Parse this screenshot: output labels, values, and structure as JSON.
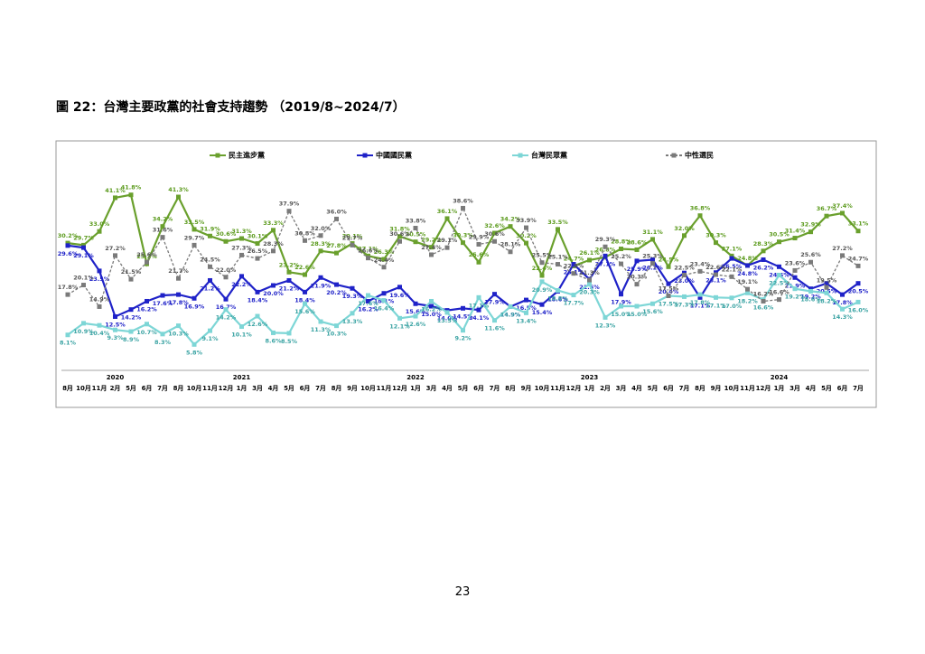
{
  "page_number": "23",
  "chart_data": {
    "type": "line",
    "title": "圖 22：台灣主要政黨的社會支持趨勢 （2019/8~2024/7）",
    "categories": [
      "8月",
      "10月",
      "11月",
      "2月",
      "5月",
      "6月",
      "7月",
      "8月",
      "10月",
      "11月",
      "12月",
      "1月",
      "3月",
      "4月",
      "5月",
      "6月",
      "7月",
      "8月",
      "9月",
      "10月",
      "11月",
      "12月",
      "1月",
      "3月",
      "4月",
      "5月",
      "6月",
      "7月",
      "8月",
      "9月",
      "10月",
      "11月",
      "12月",
      "1月",
      "2月",
      "3月",
      "4月",
      "5月",
      "6月",
      "7月",
      "8月",
      "9月",
      "10月",
      "11月",
      "12月",
      "1月",
      "3月",
      "4月",
      "5月",
      "6月",
      "7月"
    ],
    "year_row": [
      null,
      null,
      null,
      "2020",
      null,
      null,
      null,
      null,
      null,
      null,
      null,
      "2021",
      null,
      null,
      null,
      null,
      null,
      null,
      null,
      null,
      null,
      null,
      "2022",
      null,
      null,
      null,
      null,
      null,
      null,
      null,
      null,
      null,
      null,
      "2023",
      null,
      null,
      null,
      null,
      null,
      null,
      null,
      null,
      null,
      null,
      null,
      "2024",
      null,
      null,
      null,
      null,
      null
    ],
    "ylim": [
      0,
      45
    ],
    "series": [
      {
        "name": "民主進步黨",
        "color": "#6aa02d",
        "label_color": "#5b9a1c",
        "dash": false,
        "values": [
          30.2,
          29.7,
          33.0,
          41.1,
          41.8,
          25.2,
          34.2,
          41.3,
          33.5,
          31.9,
          30.6,
          31.3,
          30.1,
          33.3,
          23.2,
          22.6,
          28.3,
          27.8,
          30.1,
          27.1,
          26.3,
          31.8,
          30.5,
          29.2,
          36.1,
          30.3,
          25.6,
          32.6,
          34.2,
          30.2,
          22.4,
          33.5,
          24.7,
          26.1,
          26.8,
          28.8,
          28.6,
          31.1,
          24.5,
          32.0,
          36.8,
          30.3,
          27.1,
          24.8,
          28.3,
          30.5,
          31.4,
          32.9,
          36.7,
          37.4,
          33.1
        ],
        "value_labels": [
          "30.2%",
          "29.7%",
          "33.0%",
          "41.1%",
          "41.8%",
          "25.2%",
          "34.2%",
          "41.3%",
          "33.5%",
          "31.9%",
          "30.6%",
          "31.3%",
          "30.1%",
          "33.3%",
          "23.2%",
          "22.6%",
          "28.3%",
          "27.8%",
          "30.1%",
          "27.1%",
          "26.3%",
          "31.8%",
          "30.5%",
          "29.2%",
          "36.1%",
          "30.3%",
          "25.6%",
          "32.6%",
          "34.2%",
          "30.2%",
          "22.4%",
          "33.5%",
          "24.7%",
          "26.1%",
          "26.8%",
          "28.8%",
          "28.6%",
          "31.1%",
          "24.5%",
          "32.0%",
          "36.8%",
          "30.3%",
          "27.1%",
          "24.8%",
          "28.3%",
          "30.5%",
          "31.4%",
          "32.9%",
          "36.7%",
          "37.4%",
          "33.1%"
        ]
      },
      {
        "name": "中國國民黨",
        "color": "#1f22c8",
        "label_color": "#1f22c8",
        "dash": false,
        "values": [
          29.6,
          29.1,
          23.5,
          12.5,
          14.2,
          16.2,
          17.6,
          17.8,
          16.9,
          21.2,
          16.7,
          22.2,
          18.4,
          20.0,
          21.2,
          18.4,
          21.9,
          20.2,
          19.3,
          16.2,
          18.1,
          19.6,
          15.6,
          15.0,
          14.0,
          14.5,
          14.1,
          17.9,
          14.9,
          16.5,
          15.4,
          18.6,
          25.1,
          21.5,
          27.1,
          17.9,
          25.9,
          26.2,
          20.4,
          23.0,
          17.1,
          23.1,
          26.5,
          24.8,
          26.2,
          24.5,
          21.9,
          19.2,
          20.5,
          17.8,
          20.5
        ],
        "value_labels": [
          "29.6%",
          "29.1%",
          "23.5%",
          "12.5%",
          "14.2%",
          "16.2%",
          "17.6%",
          "17.8%",
          "16.9%",
          "21.2%",
          "16.7%",
          "22.2%",
          "18.4%",
          "20.0%",
          "21.2%",
          "18.4%",
          "21.9%",
          "20.2%",
          "19.3%",
          "16.2%",
          "18.1%",
          "19.6%",
          "15.6%",
          "15.0%",
          "14.0%",
          "14.5%",
          "14.1%",
          "17.9%",
          "14.9%",
          "16.5%",
          "15.4%",
          "18.6%",
          "25.1%",
          "21.5%",
          "27.1%",
          "17.9%",
          "25.9%",
          "26.2%",
          "20.4%",
          "23.0%",
          "17.1%",
          "23.1%",
          "26.5%",
          "24.8%",
          "26.2%",
          "24.5%",
          "21.9%",
          "19.2%",
          "20.5%",
          "17.8%",
          "20.5%"
        ]
      },
      {
        "name": "台灣民眾黨",
        "color": "#7dd6d6",
        "label_color": "#3aa3a3",
        "dash": false,
        "values": [
          8.1,
          10.9,
          10.4,
          9.3,
          8.9,
          10.7,
          8.3,
          10.3,
          5.8,
          9.1,
          14.2,
          10.1,
          12.6,
          8.6,
          8.5,
          15.6,
          11.3,
          10.3,
          13.3,
          17.6,
          16.4,
          12.1,
          12.6,
          16.2,
          13.5,
          9.2,
          17.1,
          11.6,
          14.9,
          13.4,
          20.9,
          18.8,
          17.7,
          20.3,
          12.3,
          15.0,
          15.0,
          15.6,
          17.5,
          17.3,
          17.8,
          17.1,
          17.0,
          18.2,
          16.6,
          22.5,
          19.2,
          18.6,
          18.2,
          14.3,
          16.0
        ],
        "value_labels": [
          "8.1%",
          "10.9%",
          "10.4%",
          "9.3%",
          "8.9%",
          "10.7%",
          "8.3%",
          "10.3%",
          "5.8%",
          "9.1%",
          "14.2%",
          "10.1%",
          "12.6%",
          "8.6%",
          "8.5%",
          "15.6%",
          "11.3%",
          "10.3%",
          "13.3%",
          "17.6%",
          "16.4%",
          "12.1%",
          "12.6%",
          "16.2%",
          "13.5%",
          "9.2%",
          "17.1%",
          "11.6%",
          "14.9%",
          "13.4%",
          "20.9%",
          "18.8%",
          "17.7%",
          "20.3%",
          "12.3%",
          "15.0%",
          "15.0%",
          "15.6%",
          "17.5%",
          "17.3%",
          "17.8%",
          "17.1%",
          "17.0%",
          "18.2%",
          "16.6%",
          "22.5%",
          "19.2%",
          "18.6%",
          "18.2%",
          "14.3%",
          "16.0%"
        ]
      },
      {
        "name": "中性選民",
        "color": "#7a7a7a",
        "label_color": "#555555",
        "dash": true,
        "values": [
          17.8,
          20.1,
          14.9,
          27.2,
          21.5,
          25.6,
          31.6,
          21.7,
          29.7,
          24.5,
          22.0,
          27.3,
          26.5,
          28.3,
          37.9,
          30.8,
          32.0,
          36.0,
          29.7,
          26.6,
          24.4,
          30.6,
          33.8,
          27.4,
          29.1,
          38.6,
          29.9,
          30.6,
          28.1,
          33.9,
          25.5,
          25.1,
          22.9,
          21.3,
          29.3,
          25.2,
          20.3,
          25.3,
          17.5,
          22.5,
          23.4,
          22.6,
          22.1,
          19.1,
          16.2,
          16.6,
          23.6,
          25.6,
          19.5,
          27.2,
          24.7
        ],
        "value_labels": [
          "17.8%",
          "20.1%",
          "14.9%",
          "27.2%",
          "21.5%",
          "25.6%",
          "31.6%",
          "21.7%",
          "29.7%",
          "24.5%",
          "22.0%",
          "27.3%",
          "26.5%",
          "28.3%",
          "37.9%",
          "30.8%",
          "32.0%",
          "36.0%",
          "29.7%",
          "26.6%",
          "24.4%",
          "30.6%",
          "33.8%",
          "27.4%",
          "29.1%",
          "38.6%",
          "29.9%",
          "30.6%",
          "28.1%",
          "33.9%",
          "25.5%",
          "25.1%",
          "22.9%",
          "21.3%",
          "29.3%",
          "25.2%",
          "20.3%",
          "25.3%",
          "17.5%",
          "22.5%",
          "23.4%",
          "22.6%",
          "22.1%",
          "19.1%",
          "16.2%",
          "16.6%",
          "23.6%",
          "25.6%",
          "19.5%",
          "27.2%",
          "24.7%"
        ]
      }
    ]
  }
}
